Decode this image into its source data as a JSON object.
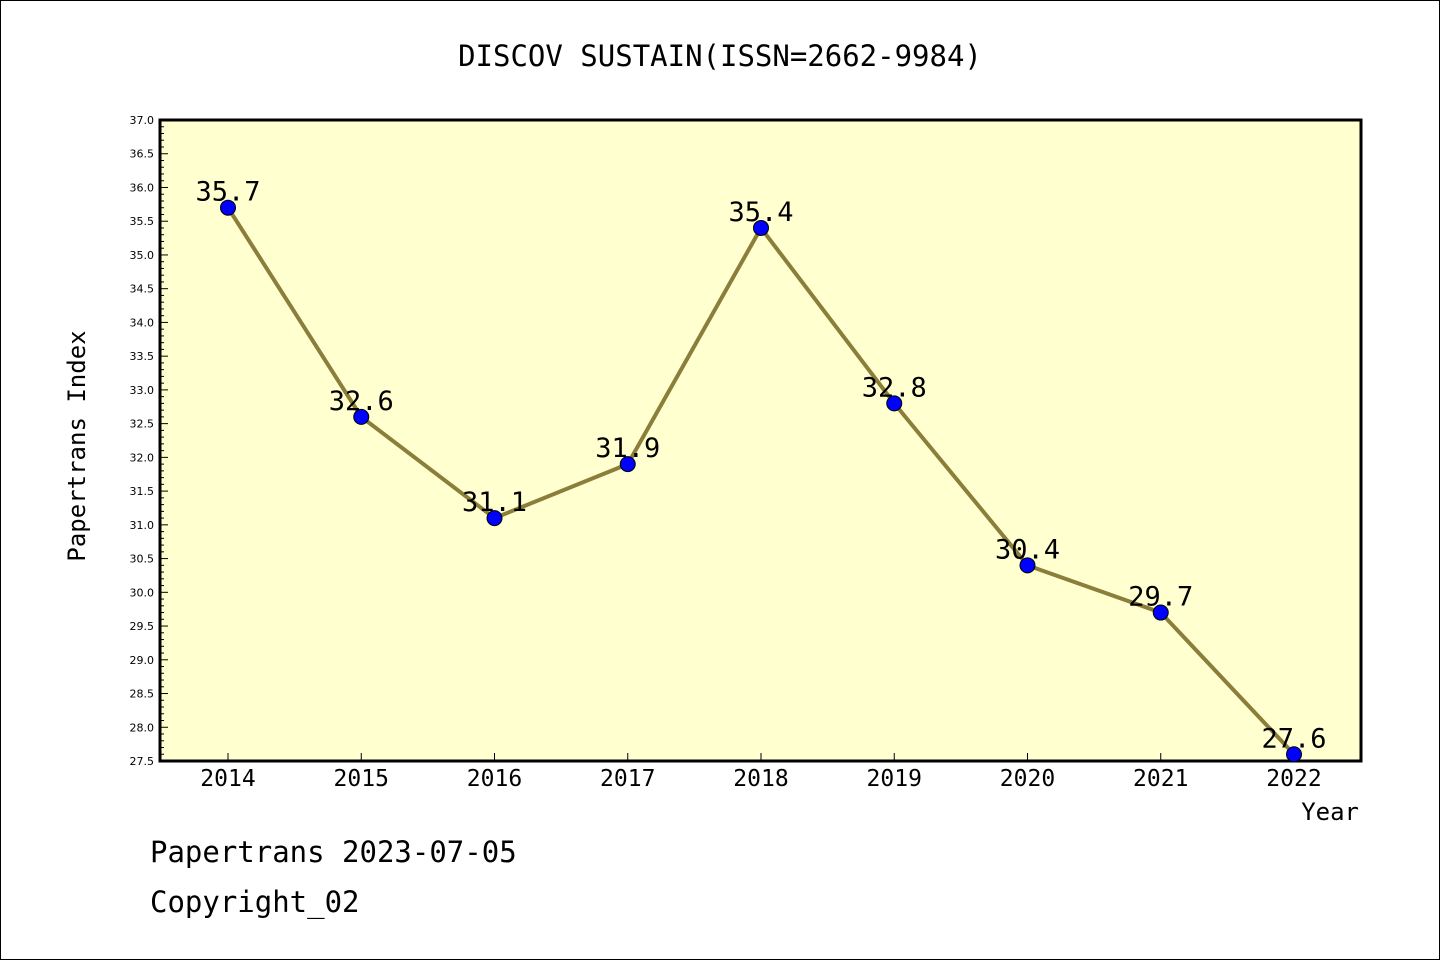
{
  "chart_data": {
    "type": "line",
    "title": "DISCOV SUSTAIN(ISSN=2662-9984)",
    "xlabel": "Year",
    "ylabel": "Papertrans Index",
    "categories": [
      "2014",
      "2015",
      "2016",
      "2017",
      "2018",
      "2019",
      "2020",
      "2021",
      "2022"
    ],
    "values": [
      35.7,
      32.6,
      31.1,
      31.9,
      35.4,
      32.8,
      30.4,
      29.7,
      27.6
    ],
    "data_labels": [
      "35.7",
      "32.6",
      "31.1",
      "31.9",
      "35.4",
      "32.8",
      "30.4",
      "29.7",
      "27.6"
    ],
    "ylim": [
      27.5,
      37.0
    ],
    "yticks": [
      "27.5",
      "28.0",
      "28.5",
      "29.0",
      "29.5",
      "30.0",
      "30.5",
      "31.0",
      "31.5",
      "32.0",
      "32.5",
      "33.0",
      "33.5",
      "34.0",
      "34.5",
      "35.0",
      "35.5",
      "36.0",
      "36.5",
      "37.0"
    ],
    "colors": {
      "plot_background": "#ffffd0",
      "line": "#8b7d3a",
      "marker": "#0000ff"
    },
    "grid": false,
    "legend": "none"
  },
  "footer": {
    "line1": "Papertrans 2023-07-05",
    "line2": "Copyright_02"
  }
}
